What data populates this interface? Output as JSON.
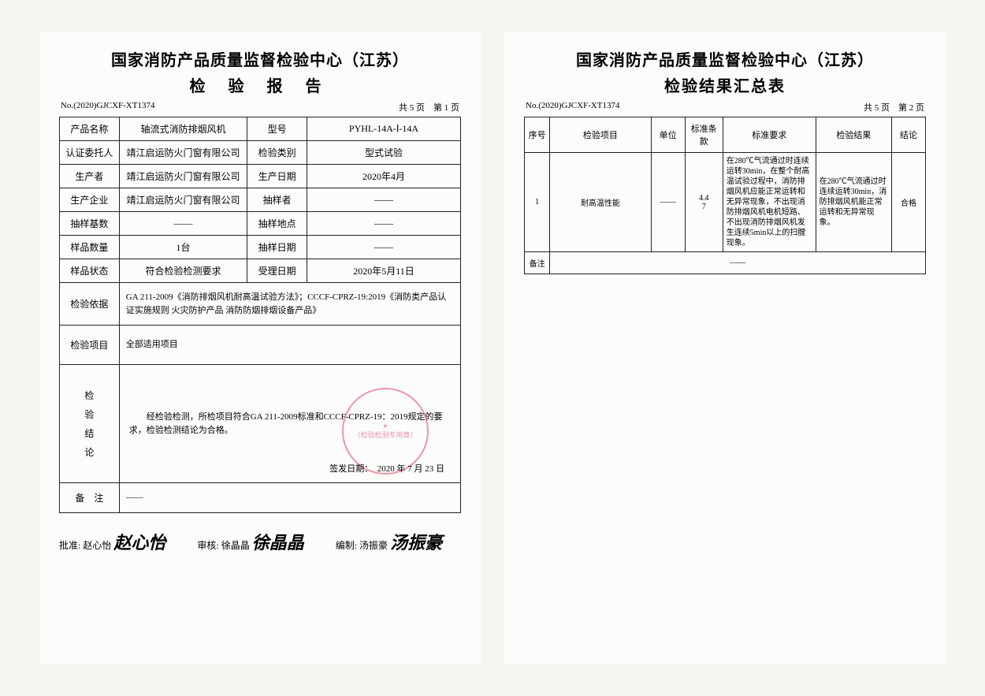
{
  "org_title": "国家消防产品质量监督检验中心（江苏）",
  "page1": {
    "subtitle": "检 验 报 告",
    "doc_no": "No.(2020)GJCXF-XT1374",
    "page_info": "共 5 页　第 1 页",
    "rows": [
      {
        "l1": "产品名称",
        "v1": "轴流式消防排烟风机",
        "l2": "型号",
        "v2": "PYHL-14A-Ⅰ-14A"
      },
      {
        "l1": "认证委托人",
        "v1": "靖江启运防火门窗有限公司",
        "l2": "检验类别",
        "v2": "型式试验"
      },
      {
        "l1": "生产者",
        "v1": "靖江启运防火门窗有限公司",
        "l2": "生产日期",
        "v2": "2020年4月"
      },
      {
        "l1": "生产企业",
        "v1": "靖江启运防火门窗有限公司",
        "l2": "抽样者",
        "v2": "——"
      },
      {
        "l1": "抽样基数",
        "v1": "——",
        "l2": "抽样地点",
        "v2": "——"
      },
      {
        "l1": "样品数量",
        "v1": "1台",
        "l2": "抽样日期",
        "v2": "——"
      },
      {
        "l1": "样品状态",
        "v1": "符合检验检测要求",
        "l2": "受理日期",
        "v2": "2020年5月11日"
      }
    ],
    "basis_label": "检验依据",
    "basis": "GA 211-2009《消防排烟风机耐高温试验方法》；CCCF-CPRZ-19:2019《消防类产品认证实施规则 火灾防护产品 消防防烟排烟设备产品》",
    "items_label": "检验项目",
    "items": "全部适用项目",
    "conclusion_label": "检\n验\n结\n论",
    "conclusion": "经检验检测，所检项目符合GA 211-2009标准和CCCF-CPRZ-19：2019规定的要求，检验检测结论为合格。",
    "stamp_text": "（检验检测专用章）",
    "sign_date": "签发日期：　2020 年 7 月 23 日",
    "remark_label": "备　注",
    "remark": "——",
    "approve_label": "批准: 赵心怡",
    "approve_sig": "赵心怡",
    "review_label": "审核: 徐晶晶",
    "review_sig": "徐晶晶",
    "compile_label": "编制: 汤振豪",
    "compile_sig": "汤振豪"
  },
  "page2": {
    "subtitle": "检验结果汇总表",
    "doc_no": "No.(2020)GJCXF-XT1374",
    "page_info": "共 5 页　第 2 页",
    "headers": [
      "序号",
      "检验项目",
      "单位",
      "标准条款",
      "标准要求",
      "检验结果",
      "结论"
    ],
    "row": {
      "no": "1",
      "item": "耐高温性能",
      "unit": "——",
      "clause": "4.4\n7",
      "requirement": "在280℃气流通过时连续运转30min，在整个耐高温试验过程中，消防排烟风机应能正常运转和无异常现象，不出现消防排烟风机电机短路、不出现消防排烟风机发生连续5min以上的扫膛现象。",
      "result": "在280℃气流通过时连续运转30min，消防排烟风机能正常运转和无异常现象。",
      "conclusion": "合格"
    },
    "remark_label": "备注",
    "remark": "——"
  },
  "colors": {
    "stamp": "#e86a8a",
    "border": "#222222",
    "bg": "#fcfcfa"
  }
}
